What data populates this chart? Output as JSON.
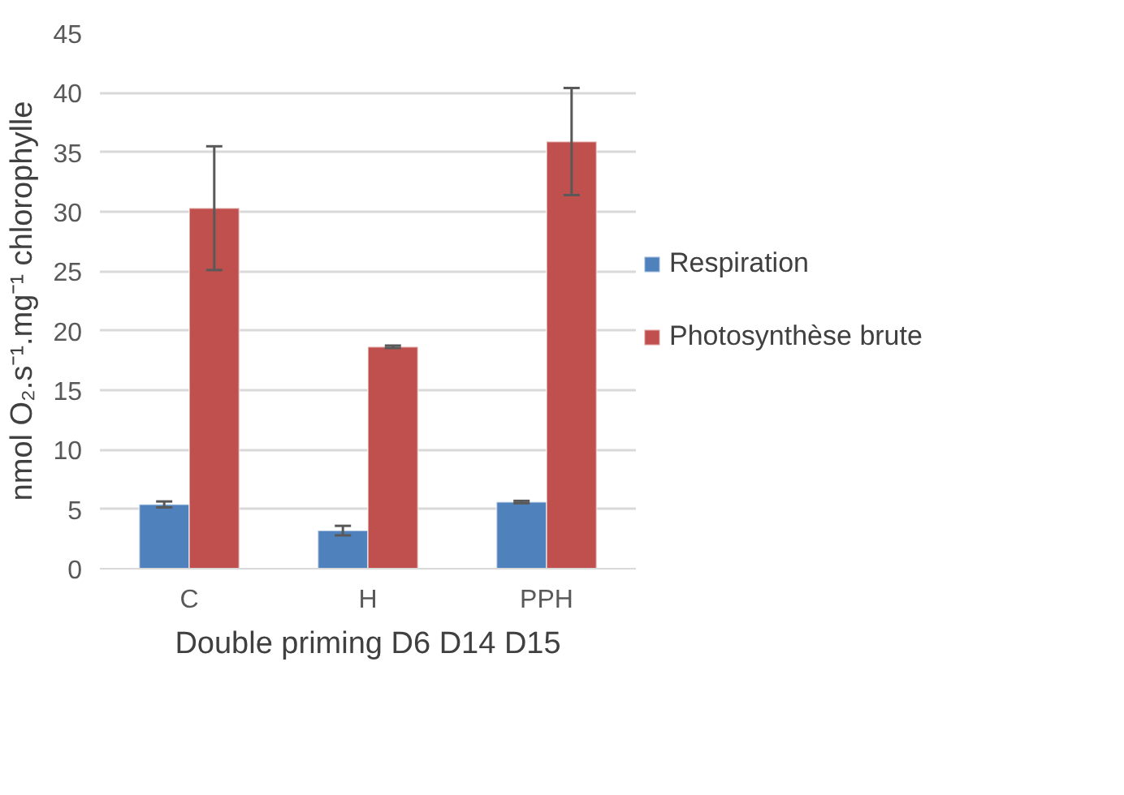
{
  "chart_data": {
    "type": "bar",
    "xlabel": "Double priming D6 D14 D15",
    "ylabel": "nmol O₂.s⁻¹.mg⁻¹ chlorophylle",
    "categories": [
      "C",
      "H",
      "PPH"
    ],
    "series": [
      {
        "name": "Respiration",
        "color": "#4f81bd",
        "values": [
          5.4,
          3.2,
          5.6
        ],
        "errors": [
          0.25,
          0.4,
          0.1
        ]
      },
      {
        "name": "Photosynthèse brute",
        "color": "#c0504d",
        "values": [
          30.3,
          18.65,
          35.9
        ],
        "errors": [
          5.2,
          0.1,
          4.5
        ]
      }
    ],
    "ylim": [
      0,
      45
    ],
    "yticks": [
      0,
      5,
      10,
      15,
      20,
      25,
      30,
      35,
      40,
      45
    ],
    "grid": "y",
    "legend": "right"
  }
}
